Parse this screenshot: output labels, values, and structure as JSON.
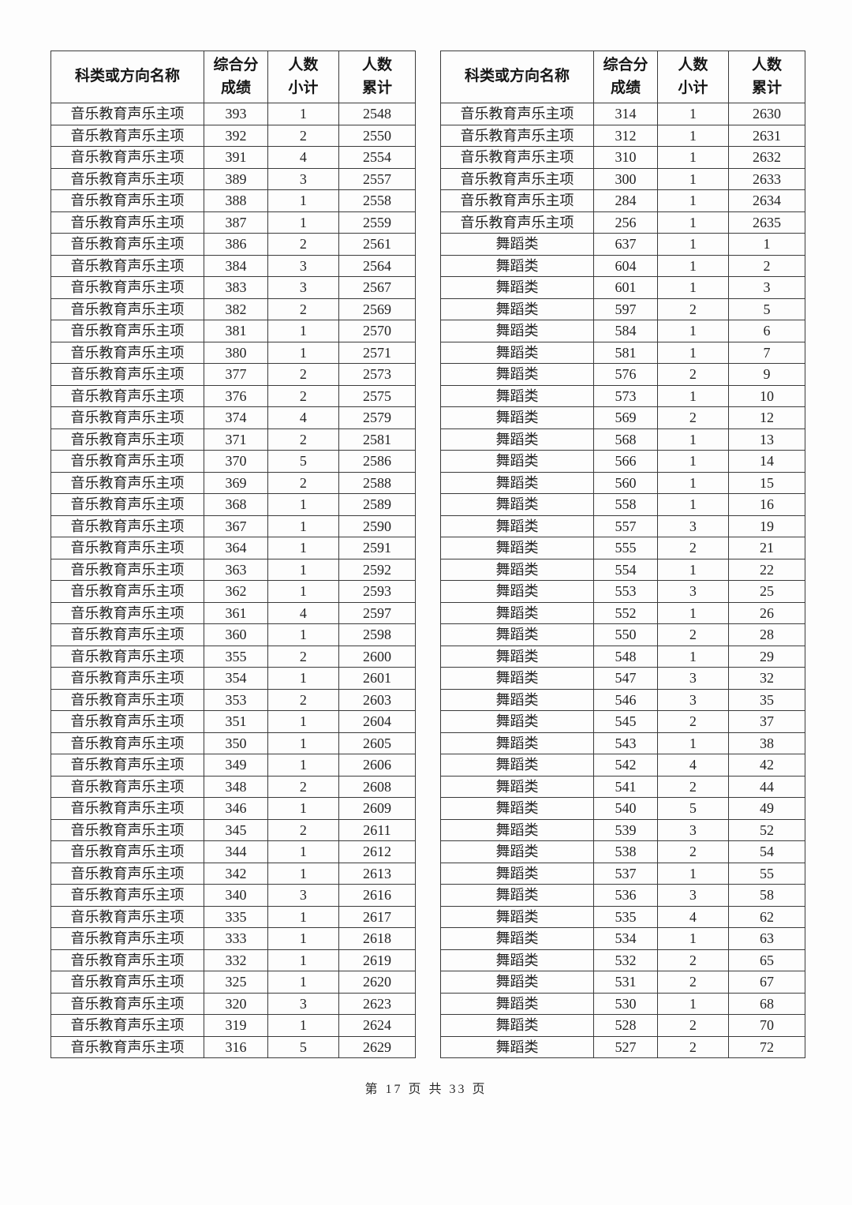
{
  "columns": [
    "科类或方向名称",
    "综合分\n成绩",
    "人数\n小计",
    "人数\n累计"
  ],
  "tables": [
    {
      "name": "left",
      "rows": [
        [
          "音乐教育声乐主项",
          "393",
          "1",
          "2548"
        ],
        [
          "音乐教育声乐主项",
          "392",
          "2",
          "2550"
        ],
        [
          "音乐教育声乐主项",
          "391",
          "4",
          "2554"
        ],
        [
          "音乐教育声乐主项",
          "389",
          "3",
          "2557"
        ],
        [
          "音乐教育声乐主项",
          "388",
          "1",
          "2558"
        ],
        [
          "音乐教育声乐主项",
          "387",
          "1",
          "2559"
        ],
        [
          "音乐教育声乐主项",
          "386",
          "2",
          "2561"
        ],
        [
          "音乐教育声乐主项",
          "384",
          "3",
          "2564"
        ],
        [
          "音乐教育声乐主项",
          "383",
          "3",
          "2567"
        ],
        [
          "音乐教育声乐主项",
          "382",
          "2",
          "2569"
        ],
        [
          "音乐教育声乐主项",
          "381",
          "1",
          "2570"
        ],
        [
          "音乐教育声乐主项",
          "380",
          "1",
          "2571"
        ],
        [
          "音乐教育声乐主项",
          "377",
          "2",
          "2573"
        ],
        [
          "音乐教育声乐主项",
          "376",
          "2",
          "2575"
        ],
        [
          "音乐教育声乐主项",
          "374",
          "4",
          "2579"
        ],
        [
          "音乐教育声乐主项",
          "371",
          "2",
          "2581"
        ],
        [
          "音乐教育声乐主项",
          "370",
          "5",
          "2586"
        ],
        [
          "音乐教育声乐主项",
          "369",
          "2",
          "2588"
        ],
        [
          "音乐教育声乐主项",
          "368",
          "1",
          "2589"
        ],
        [
          "音乐教育声乐主项",
          "367",
          "1",
          "2590"
        ],
        [
          "音乐教育声乐主项",
          "364",
          "1",
          "2591"
        ],
        [
          "音乐教育声乐主项",
          "363",
          "1",
          "2592"
        ],
        [
          "音乐教育声乐主项",
          "362",
          "1",
          "2593"
        ],
        [
          "音乐教育声乐主项",
          "361",
          "4",
          "2597"
        ],
        [
          "音乐教育声乐主项",
          "360",
          "1",
          "2598"
        ],
        [
          "音乐教育声乐主项",
          "355",
          "2",
          "2600"
        ],
        [
          "音乐教育声乐主项",
          "354",
          "1",
          "2601"
        ],
        [
          "音乐教育声乐主项",
          "353",
          "2",
          "2603"
        ],
        [
          "音乐教育声乐主项",
          "351",
          "1",
          "2604"
        ],
        [
          "音乐教育声乐主项",
          "350",
          "1",
          "2605"
        ],
        [
          "音乐教育声乐主项",
          "349",
          "1",
          "2606"
        ],
        [
          "音乐教育声乐主项",
          "348",
          "2",
          "2608"
        ],
        [
          "音乐教育声乐主项",
          "346",
          "1",
          "2609"
        ],
        [
          "音乐教育声乐主项",
          "345",
          "2",
          "2611"
        ],
        [
          "音乐教育声乐主项",
          "344",
          "1",
          "2612"
        ],
        [
          "音乐教育声乐主项",
          "342",
          "1",
          "2613"
        ],
        [
          "音乐教育声乐主项",
          "340",
          "3",
          "2616"
        ],
        [
          "音乐教育声乐主项",
          "335",
          "1",
          "2617"
        ],
        [
          "音乐教育声乐主项",
          "333",
          "1",
          "2618"
        ],
        [
          "音乐教育声乐主项",
          "332",
          "1",
          "2619"
        ],
        [
          "音乐教育声乐主项",
          "325",
          "1",
          "2620"
        ],
        [
          "音乐教育声乐主项",
          "320",
          "3",
          "2623"
        ],
        [
          "音乐教育声乐主项",
          "319",
          "1",
          "2624"
        ],
        [
          "音乐教育声乐主项",
          "316",
          "5",
          "2629"
        ]
      ]
    },
    {
      "name": "right",
      "rows": [
        [
          "音乐教育声乐主项",
          "314",
          "1",
          "2630"
        ],
        [
          "音乐教育声乐主项",
          "312",
          "1",
          "2631"
        ],
        [
          "音乐教育声乐主项",
          "310",
          "1",
          "2632"
        ],
        [
          "音乐教育声乐主项",
          "300",
          "1",
          "2633"
        ],
        [
          "音乐教育声乐主项",
          "284",
          "1",
          "2634"
        ],
        [
          "音乐教育声乐主项",
          "256",
          "1",
          "2635"
        ],
        [
          "舞蹈类",
          "637",
          "1",
          "1"
        ],
        [
          "舞蹈类",
          "604",
          "1",
          "2"
        ],
        [
          "舞蹈类",
          "601",
          "1",
          "3"
        ],
        [
          "舞蹈类",
          "597",
          "2",
          "5"
        ],
        [
          "舞蹈类",
          "584",
          "1",
          "6"
        ],
        [
          "舞蹈类",
          "581",
          "1",
          "7"
        ],
        [
          "舞蹈类",
          "576",
          "2",
          "9"
        ],
        [
          "舞蹈类",
          "573",
          "1",
          "10"
        ],
        [
          "舞蹈类",
          "569",
          "2",
          "12"
        ],
        [
          "舞蹈类",
          "568",
          "1",
          "13"
        ],
        [
          "舞蹈类",
          "566",
          "1",
          "14"
        ],
        [
          "舞蹈类",
          "560",
          "1",
          "15"
        ],
        [
          "舞蹈类",
          "558",
          "1",
          "16"
        ],
        [
          "舞蹈类",
          "557",
          "3",
          "19"
        ],
        [
          "舞蹈类",
          "555",
          "2",
          "21"
        ],
        [
          "舞蹈类",
          "554",
          "1",
          "22"
        ],
        [
          "舞蹈类",
          "553",
          "3",
          "25"
        ],
        [
          "舞蹈类",
          "552",
          "1",
          "26"
        ],
        [
          "舞蹈类",
          "550",
          "2",
          "28"
        ],
        [
          "舞蹈类",
          "548",
          "1",
          "29"
        ],
        [
          "舞蹈类",
          "547",
          "3",
          "32"
        ],
        [
          "舞蹈类",
          "546",
          "3",
          "35"
        ],
        [
          "舞蹈类",
          "545",
          "2",
          "37"
        ],
        [
          "舞蹈类",
          "543",
          "1",
          "38"
        ],
        [
          "舞蹈类",
          "542",
          "4",
          "42"
        ],
        [
          "舞蹈类",
          "541",
          "2",
          "44"
        ],
        [
          "舞蹈类",
          "540",
          "5",
          "49"
        ],
        [
          "舞蹈类",
          "539",
          "3",
          "52"
        ],
        [
          "舞蹈类",
          "538",
          "2",
          "54"
        ],
        [
          "舞蹈类",
          "537",
          "1",
          "55"
        ],
        [
          "舞蹈类",
          "536",
          "3",
          "58"
        ],
        [
          "舞蹈类",
          "535",
          "4",
          "62"
        ],
        [
          "舞蹈类",
          "534",
          "1",
          "63"
        ],
        [
          "舞蹈类",
          "532",
          "2",
          "65"
        ],
        [
          "舞蹈类",
          "531",
          "2",
          "67"
        ],
        [
          "舞蹈类",
          "530",
          "1",
          "68"
        ],
        [
          "舞蹈类",
          "528",
          "2",
          "70"
        ],
        [
          "舞蹈类",
          "527",
          "2",
          "72"
        ]
      ]
    }
  ],
  "footer": {
    "text": "第 17 页 共 33 页"
  }
}
